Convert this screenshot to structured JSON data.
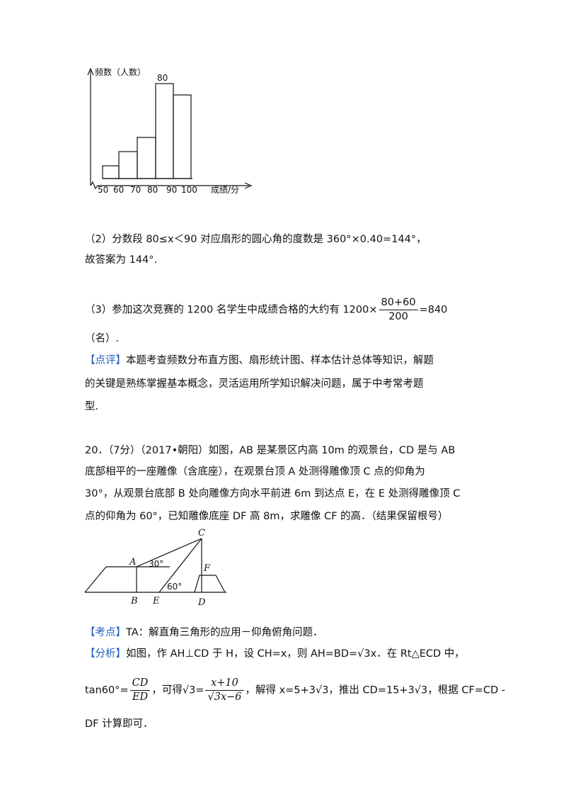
{
  "histogram": {
    "y_label": "频数（人数）",
    "peak_label": "80",
    "x_ticks": [
      "50",
      "60",
      "70",
      "80",
      "90",
      "100"
    ],
    "x_label": "成绩/分"
  },
  "part2": {
    "line1": "（2）分数段 80≤x＜90 对应扇形的圆心角的度数是 360°×0.40=144°，",
    "line2": "故答案为 144°."
  },
  "part3": {
    "prefix": "（3）参加这次竞赛的 1200 名学生中成绩合格的大约有 1200×",
    "numerator": "80+60",
    "denominator": "200",
    "suffix": "=840",
    "line2": "（名）."
  },
  "comment": {
    "tag": "【点评】",
    "lines": [
      "本题考查频数分布直方图、扇形统计图、样本估计总体等知识，解题",
      "的关键是熟练掌握基本概念，灵活运用所学知识解决问题，属于中考常考题",
      "型."
    ]
  },
  "problem": {
    "lines": [
      "20．（7分）（2017•朝阳）如图，AB 是某景区内高 10m 的观景台，CD 是与 AB",
      "底部相平的一座雕像（含底座），在观景台顶 A 处测得雕像顶 C 点的仰角为",
      "30°，从观景台底部 B 处向雕像方向水平前进 6m 到达点 E，在 E 处测得雕像顶 C",
      "点的仰角为 60°，已知雕像底座 DF 高 8m，求雕像 CF 的高．（结果保留根号）"
    ]
  },
  "figure": {
    "labels": [
      "A",
      "B",
      "C",
      "D",
      "E",
      "F"
    ],
    "angles": [
      "30°",
      "60°"
    ]
  },
  "point": {
    "tag": "【考点】",
    "text": "TA：解直角三角形的应用－仰角俯角问题．"
  },
  "analysis": {
    "tag": "【分析】",
    "line1": "如图，作 AH⊥CD 于 H，设 CH=x，则 AH=BD=√3x．在 Rt△ECD 中，",
    "line2_prefix": "tan60°=",
    "frac1_num": "CD",
    "frac1_den": "ED",
    "line2_mid": "，可得√3=",
    "frac2_num": "x+10",
    "frac2_den": "√3x−6",
    "line2_suffix": "，解得 x=5+3√3，推出 CD=15+3√3，根据 CF=CD -",
    "line3": "DF 计算即可．"
  }
}
